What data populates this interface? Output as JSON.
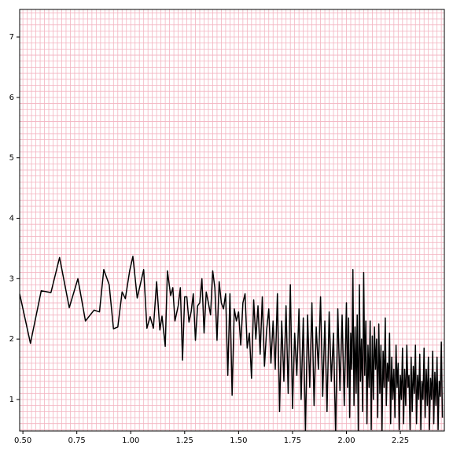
{
  "chart_data": {
    "type": "line",
    "xlim": [
      0.485,
      2.454
    ],
    "ylim": [
      0.479,
      7.456
    ],
    "xticks": [
      {
        "value": 0.5,
        "label": "0.50"
      },
      {
        "value": 0.75,
        "label": "0.75"
      },
      {
        "value": 1.0,
        "label": "1.00"
      },
      {
        "value": 1.25,
        "label": "1.25"
      },
      {
        "value": 1.5,
        "label": "1.50"
      },
      {
        "value": 1.75,
        "label": "1.75"
      },
      {
        "value": 2.0,
        "label": "2.00"
      },
      {
        "value": 2.25,
        "label": "2.25"
      }
    ],
    "yticks": [
      1,
      2,
      3,
      4,
      5,
      6,
      7
    ],
    "grid": true,
    "minor_grid": {
      "color": "#f3b3c0",
      "xstep": 0.02,
      "ystep": 0.1
    },
    "x": [
      0.485,
      0.535,
      0.585,
      0.63,
      0.67,
      0.715,
      0.755,
      0.79,
      0.83,
      0.855,
      0.875,
      0.9,
      0.92,
      0.94,
      0.96,
      0.975,
      0.995,
      1.01,
      1.03,
      1.06,
      1.075,
      1.09,
      1.105,
      1.12,
      1.135,
      1.145,
      1.16,
      1.17,
      1.185,
      1.195,
      1.205,
      1.22,
      1.23,
      1.24,
      1.25,
      1.26,
      1.27,
      1.28,
      1.29,
      1.3,
      1.31,
      1.32,
      1.33,
      1.34,
      1.35,
      1.36,
      1.37,
      1.38,
      1.39,
      1.4,
      1.41,
      1.42,
      1.43,
      1.44,
      1.45,
      1.46,
      1.47,
      1.48,
      1.49,
      1.5,
      1.51,
      1.52,
      1.53,
      1.54,
      1.55,
      1.56,
      1.57,
      1.58,
      1.59,
      1.6,
      1.61,
      1.62,
      1.63,
      1.64,
      1.65,
      1.66,
      1.67,
      1.68,
      1.69,
      1.7,
      1.71,
      1.72,
      1.73,
      1.74,
      1.75,
      1.76,
      1.77,
      1.78,
      1.79,
      1.8,
      1.81,
      1.82,
      1.83,
      1.84,
      1.85,
      1.86,
      1.87,
      1.88,
      1.89,
      1.9,
      1.91,
      1.92,
      1.93,
      1.94,
      1.95,
      1.96,
      1.97,
      1.98,
      1.99,
      2.0,
      2.005,
      2.01,
      2.015,
      2.02,
      2.025,
      2.03,
      2.035,
      2.04,
      2.045,
      2.05,
      2.055,
      2.06,
      2.065,
      2.07,
      2.075,
      2.08,
      2.085,
      2.09,
      2.095,
      2.1,
      2.105,
      2.11,
      2.115,
      2.12,
      2.125,
      2.13,
      2.135,
      2.14,
      2.145,
      2.15,
      2.155,
      2.16,
      2.165,
      2.17,
      2.175,
      2.18,
      2.185,
      2.19,
      2.195,
      2.2,
      2.205,
      2.21,
      2.215,
      2.22,
      2.225,
      2.23,
      2.235,
      2.24,
      2.245,
      2.25,
      2.255,
      2.26,
      2.265,
      2.27,
      2.275,
      2.28,
      2.285,
      2.29,
      2.295,
      2.3,
      2.305,
      2.31,
      2.315,
      2.32,
      2.325,
      2.33,
      2.335,
      2.34,
      2.345,
      2.35,
      2.355,
      2.36,
      2.365,
      2.37,
      2.375,
      2.38,
      2.385,
      2.39,
      2.395,
      2.4,
      2.405,
      2.41,
      2.415,
      2.42,
      2.425,
      2.43,
      2.435,
      2.44,
      2.445
    ],
    "series": [
      {
        "color": "#000000",
        "values": [
          2.75,
          1.93,
          2.8,
          2.77,
          3.35,
          2.52,
          3.0,
          2.3,
          2.48,
          2.45,
          3.15,
          2.9,
          2.17,
          2.2,
          2.78,
          2.67,
          3.13,
          3.37,
          2.68,
          3.15,
          2.18,
          2.37,
          2.18,
          2.95,
          2.15,
          2.38,
          1.88,
          3.13,
          2.72,
          2.85,
          2.3,
          2.55,
          2.85,
          1.65,
          2.7,
          2.7,
          2.28,
          2.45,
          2.75,
          1.98,
          2.55,
          2.6,
          3.0,
          2.1,
          2.78,
          2.6,
          2.4,
          3.13,
          2.85,
          1.98,
          2.95,
          2.6,
          2.5,
          2.75,
          1.4,
          2.75,
          1.07,
          2.5,
          2.3,
          2.45,
          1.9,
          2.6,
          2.75,
          1.85,
          2.1,
          1.35,
          2.65,
          2.0,
          2.55,
          1.75,
          2.7,
          1.55,
          2.15,
          2.5,
          1.6,
          2.3,
          1.5,
          2.75,
          0.8,
          2.3,
          1.3,
          2.55,
          1.1,
          2.9,
          0.85,
          2.1,
          1.4,
          2.5,
          1.0,
          2.35,
          0.45,
          2.4,
          1.2,
          2.6,
          0.9,
          2.2,
          1.5,
          2.7,
          1.05,
          2.3,
          0.8,
          2.45,
          1.3,
          2.1,
          0.4,
          2.5,
          1.15,
          2.4,
          0.9,
          2.6,
          1.2,
          2.35,
          0.7,
          2.1,
          1.5,
          3.15,
          0.9,
          2.2,
          1.1,
          2.4,
          0.45,
          2.9,
          1.3,
          2.0,
          0.8,
          3.1,
          1.4,
          2.3,
          0.6,
          1.9,
          1.2,
          2.3,
          0.5,
          2.05,
          1.0,
          2.2,
          1.5,
          2.0,
          0.7,
          2.25,
          1.1,
          1.9,
          0.45,
          1.8,
          1.2,
          2.35,
          0.9,
          1.6,
          1.3,
          2.1,
          0.6,
          1.7,
          1.0,
          1.5,
          0.7,
          1.9,
          1.2,
          1.6,
          0.5,
          1.4,
          1.0,
          1.85,
          0.6,
          1.5,
          0.9,
          1.9,
          1.2,
          1.4,
          0.5,
          1.7,
          0.8,
          1.55,
          1.1,
          1.9,
          0.6,
          1.4,
          1.0,
          1.75,
          0.5,
          1.3,
          1.0,
          1.85,
          0.7,
          1.5,
          0.9,
          1.7,
          0.5,
          1.35,
          1.0,
          1.8,
          0.6,
          1.45,
          0.9,
          1.7,
          0.5,
          1.3,
          1.05,
          1.95,
          0.7
        ]
      }
    ]
  }
}
